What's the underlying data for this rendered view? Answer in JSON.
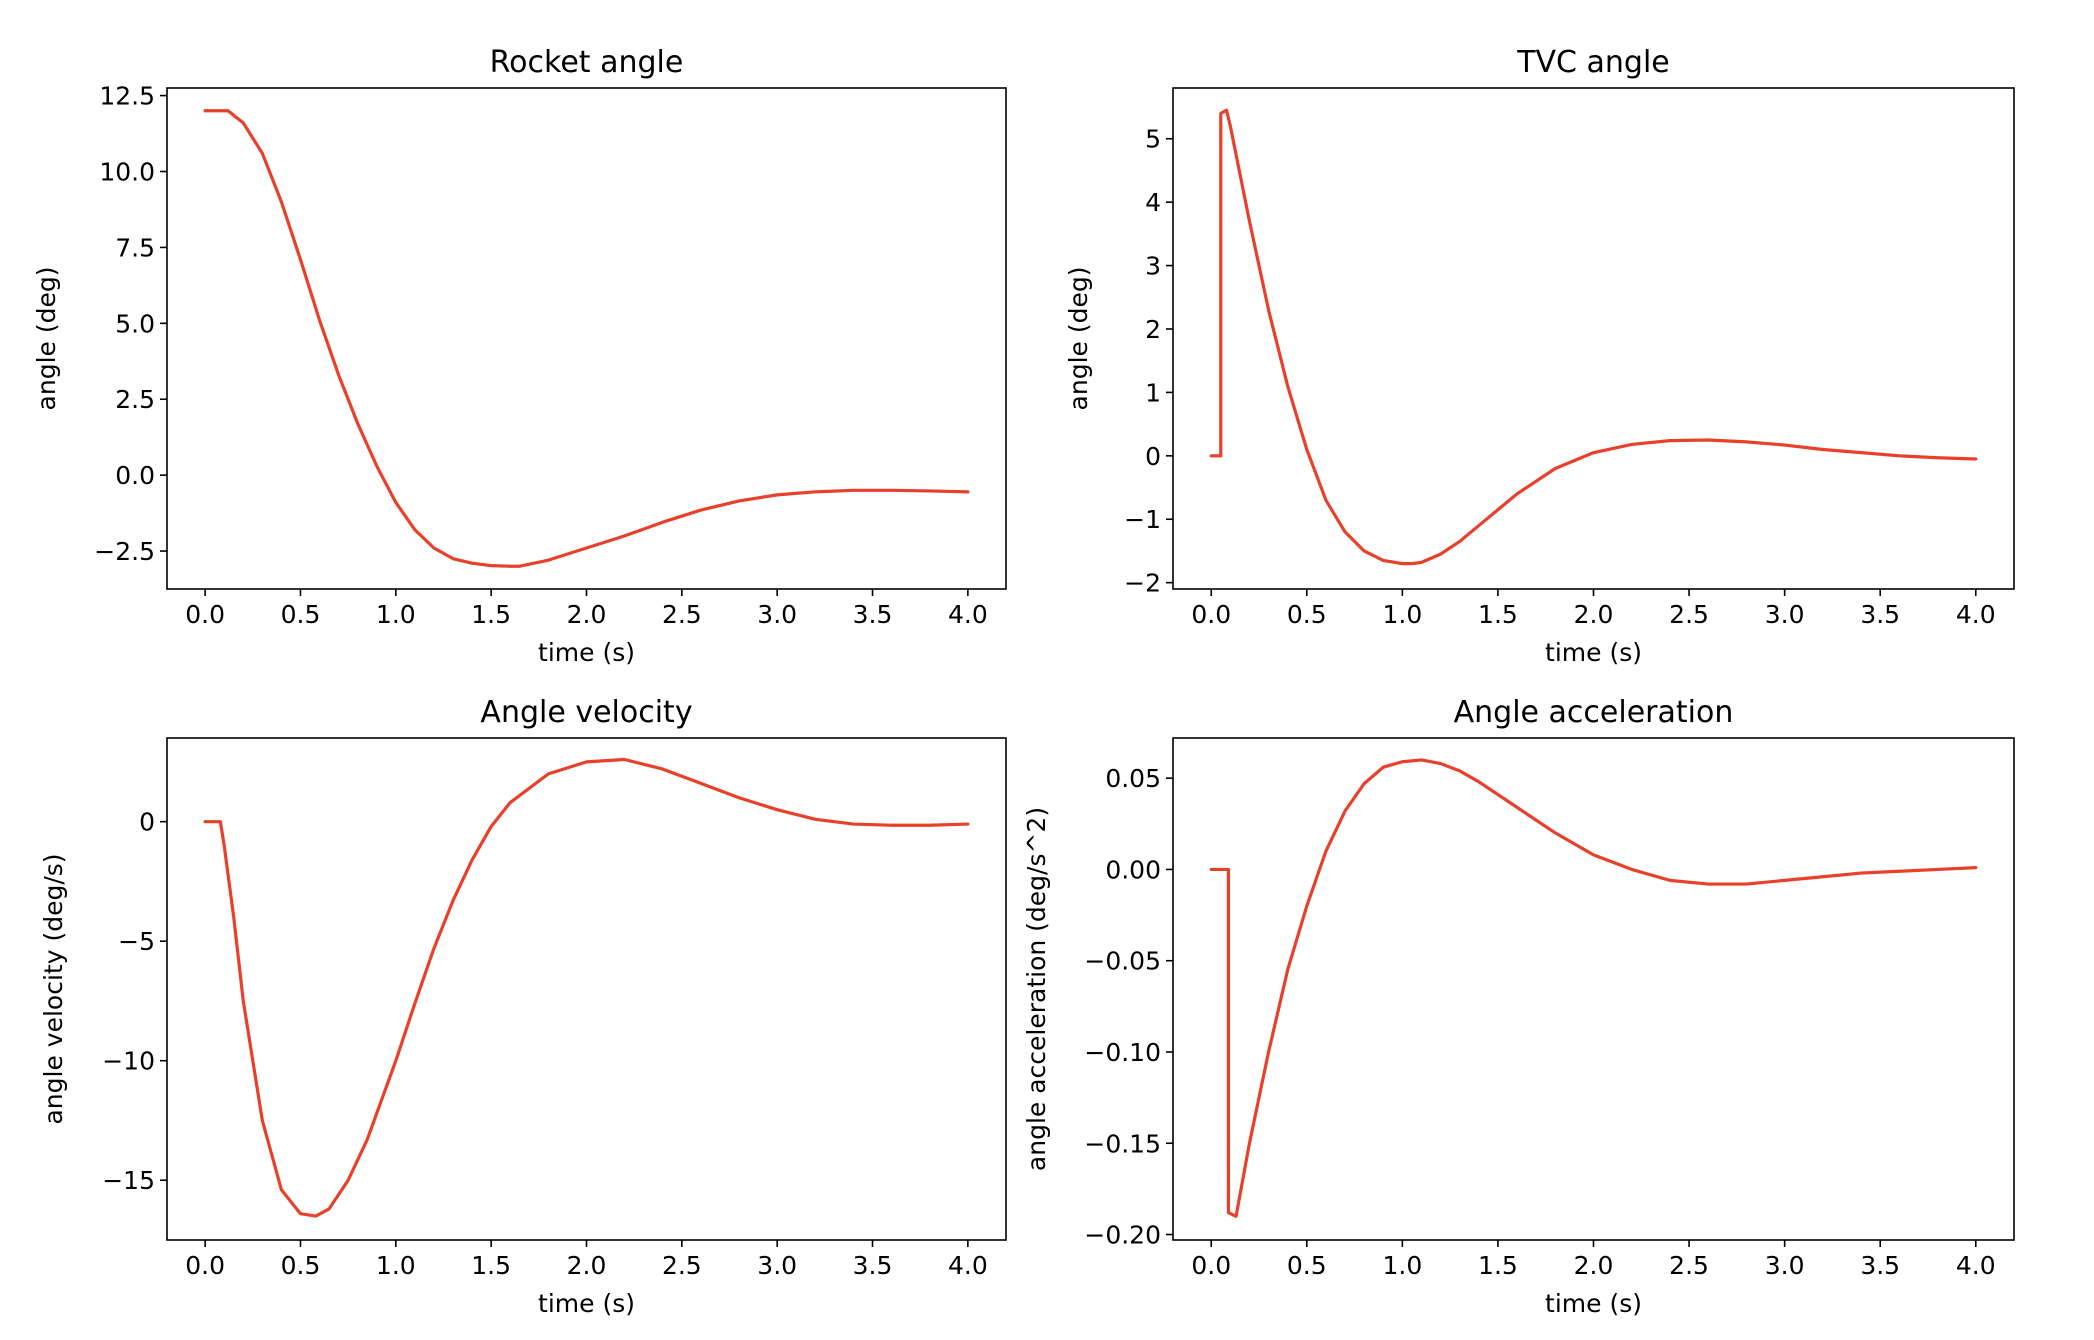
{
  "colors": {
    "line": "#e8402a",
    "axes": "#000000",
    "background": "#ffffff"
  },
  "chart_data": [
    {
      "id": "rocket-angle",
      "type": "line",
      "title": "Rocket angle",
      "xlabel": "time (s)",
      "ylabel": "angle (deg)",
      "xlim": [
        -0.2,
        4.2
      ],
      "ylim": [
        -3.75,
        12.75
      ],
      "xticks": [
        0.0,
        0.5,
        1.0,
        1.5,
        2.0,
        2.5,
        3.0,
        3.5,
        4.0
      ],
      "xtick_labels": [
        "0.0",
        "0.5",
        "1.0",
        "1.5",
        "2.0",
        "2.5",
        "3.0",
        "3.5",
        "4.0"
      ],
      "yticks": [
        -2.5,
        0.0,
        2.5,
        5.0,
        7.5,
        10.0,
        12.5
      ],
      "ytick_labels": [
        "−2.5",
        "0.0",
        "2.5",
        "5.0",
        "7.5",
        "10.0",
        "12.5"
      ],
      "series": [
        {
          "name": "Rocket angle",
          "x": [
            0,
            0.04,
            0.08,
            0.12,
            0.2,
            0.3,
            0.4,
            0.5,
            0.6,
            0.7,
            0.8,
            0.9,
            1.0,
            1.1,
            1.2,
            1.3,
            1.4,
            1.5,
            1.6,
            1.65,
            1.8,
            2.0,
            2.2,
            2.4,
            2.6,
            2.8,
            3.0,
            3.2,
            3.4,
            3.6,
            3.8,
            4.0
          ],
          "y": [
            12.0,
            12.0,
            12.0,
            12.0,
            11.6,
            10.6,
            9.0,
            7.1,
            5.1,
            3.3,
            1.7,
            0.3,
            -0.9,
            -1.8,
            -2.4,
            -2.75,
            -2.9,
            -2.98,
            -3.0,
            -3.0,
            -2.8,
            -2.4,
            -2.0,
            -1.55,
            -1.15,
            -0.85,
            -0.65,
            -0.55,
            -0.5,
            -0.5,
            -0.52,
            -0.55
          ]
        }
      ]
    },
    {
      "id": "tvc-angle",
      "type": "line",
      "title": "TVC angle",
      "xlabel": "time (s)",
      "ylabel": "angle (deg)",
      "xlim": [
        -0.2,
        4.2
      ],
      "ylim": [
        -2.1,
        5.8
      ],
      "xticks": [
        0.0,
        0.5,
        1.0,
        1.5,
        2.0,
        2.5,
        3.0,
        3.5,
        4.0
      ],
      "xtick_labels": [
        "0.0",
        "0.5",
        "1.0",
        "1.5",
        "2.0",
        "2.5",
        "3.0",
        "3.5",
        "4.0"
      ],
      "yticks": [
        -2,
        -1,
        0,
        1,
        2,
        3,
        4,
        5
      ],
      "ytick_labels": [
        "−2",
        "−1",
        "0",
        "1",
        "2",
        "3",
        "4",
        "5"
      ],
      "series": [
        {
          "name": "TVC angle",
          "x": [
            0,
            0.05,
            0.05,
            0.08,
            0.1,
            0.2,
            0.3,
            0.4,
            0.5,
            0.6,
            0.7,
            0.8,
            0.9,
            1.0,
            1.05,
            1.1,
            1.2,
            1.3,
            1.4,
            1.5,
            1.6,
            1.8,
            2.0,
            2.2,
            2.4,
            2.6,
            2.8,
            3.0,
            3.2,
            3.4,
            3.6,
            3.8,
            4.0
          ],
          "y": [
            0.0,
            0.0,
            5.4,
            5.45,
            5.2,
            3.7,
            2.3,
            1.1,
            0.1,
            -0.7,
            -1.2,
            -1.5,
            -1.65,
            -1.7,
            -1.7,
            -1.68,
            -1.55,
            -1.35,
            -1.1,
            -0.85,
            -0.6,
            -0.2,
            0.05,
            0.18,
            0.24,
            0.25,
            0.22,
            0.17,
            0.1,
            0.05,
            0.0,
            -0.03,
            -0.05
          ]
        }
      ]
    },
    {
      "id": "angle-velocity",
      "type": "line",
      "title": "Angle velocity",
      "xlabel": "time (s)",
      "ylabel": "angle velocity (deg/s)",
      "xlim": [
        -0.2,
        4.2
      ],
      "ylim": [
        -17.5,
        3.5
      ],
      "xticks": [
        0.0,
        0.5,
        1.0,
        1.5,
        2.0,
        2.5,
        3.0,
        3.5,
        4.0
      ],
      "xtick_labels": [
        "0.0",
        "0.5",
        "1.0",
        "1.5",
        "2.0",
        "2.5",
        "3.0",
        "3.5",
        "4.0"
      ],
      "yticks": [
        -15,
        -10,
        -5,
        0
      ],
      "ytick_labels": [
        "−15",
        "−10",
        "−5",
        "0"
      ],
      "series": [
        {
          "name": "Angle velocity",
          "x": [
            0,
            0.08,
            0.1,
            0.15,
            0.2,
            0.3,
            0.4,
            0.5,
            0.58,
            0.65,
            0.75,
            0.85,
            1.0,
            1.1,
            1.2,
            1.3,
            1.4,
            1.5,
            1.6,
            1.8,
            2.0,
            2.2,
            2.4,
            2.6,
            2.8,
            3.0,
            3.2,
            3.4,
            3.6,
            3.8,
            4.0
          ],
          "y": [
            0.0,
            0.0,
            -1.0,
            -4.0,
            -7.5,
            -12.5,
            -15.4,
            -16.4,
            -16.5,
            -16.2,
            -15.0,
            -13.3,
            -10.0,
            -7.6,
            -5.3,
            -3.3,
            -1.6,
            -0.2,
            0.8,
            2.0,
            2.5,
            2.6,
            2.2,
            1.6,
            1.0,
            0.5,
            0.1,
            -0.1,
            -0.15,
            -0.15,
            -0.1
          ]
        }
      ]
    },
    {
      "id": "angle-acceleration",
      "type": "line",
      "title": "Angle acceleration",
      "xlabel": "time (s)",
      "ylabel": "angle acceleration (deg/s^2)",
      "xlim": [
        -0.2,
        4.2
      ],
      "ylim": [
        -0.203,
        0.072
      ],
      "xticks": [
        0.0,
        0.5,
        1.0,
        1.5,
        2.0,
        2.5,
        3.0,
        3.5,
        4.0
      ],
      "xtick_labels": [
        "0.0",
        "0.5",
        "1.0",
        "1.5",
        "2.0",
        "2.5",
        "3.0",
        "3.5",
        "4.0"
      ],
      "yticks": [
        -0.2,
        -0.15,
        -0.1,
        -0.05,
        0.0,
        0.05
      ],
      "ytick_labels": [
        "−0.20",
        "−0.15",
        "−0.10",
        "−0.05",
        "0.00",
        "0.05"
      ],
      "series": [
        {
          "name": "Angle acceleration",
          "x": [
            0,
            0.09,
            0.09,
            0.13,
            0.2,
            0.3,
            0.4,
            0.5,
            0.6,
            0.7,
            0.8,
            0.9,
            1.0,
            1.1,
            1.2,
            1.3,
            1.4,
            1.5,
            1.6,
            1.8,
            2.0,
            2.2,
            2.4,
            2.6,
            2.8,
            3.0,
            3.2,
            3.4,
            3.6,
            3.8,
            4.0
          ],
          "y": [
            0.0,
            0.0,
            -0.188,
            -0.19,
            -0.15,
            -0.1,
            -0.055,
            -0.02,
            0.01,
            0.032,
            0.047,
            0.056,
            0.059,
            0.06,
            0.058,
            0.054,
            0.048,
            0.041,
            0.034,
            0.02,
            0.008,
            0.0,
            -0.006,
            -0.008,
            -0.008,
            -0.006,
            -0.004,
            -0.002,
            -0.001,
            0.0,
            0.001
          ]
        }
      ]
    }
  ]
}
